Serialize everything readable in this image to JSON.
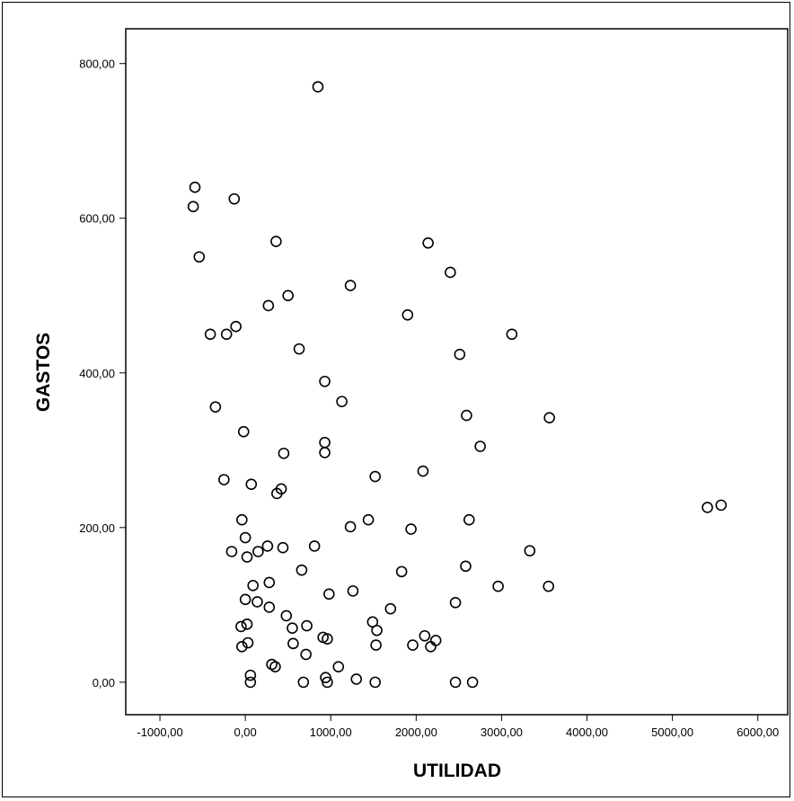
{
  "chart_data": {
    "type": "scatter",
    "title": "",
    "xlabel": "UTILIDAD",
    "ylabel": "GASTOS",
    "xlim": [
      -1400,
      6350
    ],
    "ylim": [
      -42,
      845
    ],
    "x_ticks": [
      -1000,
      0,
      1000,
      2000,
      3000,
      4000,
      5000,
      6000
    ],
    "x_tick_labels": [
      "-1000,00",
      "0,00",
      "1000,00",
      "2000,00",
      "3000,00",
      "4000,00",
      "5000,00",
      "6000,00"
    ],
    "y_ticks": [
      0,
      200,
      400,
      600,
      800
    ],
    "y_tick_labels": [
      "0,00",
      "200,00",
      "400,00",
      "600,00",
      "800,00"
    ],
    "grid": false,
    "legend": "none",
    "marker": "open-circle",
    "colors": {
      "marker": "#000000",
      "axis": "#000000",
      "background": "#ffffff"
    },
    "points": [
      {
        "x": 850,
        "y": 770
      },
      {
        "x": -590,
        "y": 640
      },
      {
        "x": -610,
        "y": 615
      },
      {
        "x": -130,
        "y": 625
      },
      {
        "x": 360,
        "y": 570
      },
      {
        "x": 2140,
        "y": 568
      },
      {
        "x": -540,
        "y": 550
      },
      {
        "x": 2400,
        "y": 530
      },
      {
        "x": 1230,
        "y": 513
      },
      {
        "x": 500,
        "y": 500
      },
      {
        "x": 270,
        "y": 487
      },
      {
        "x": 1900,
        "y": 475
      },
      {
        "x": -110,
        "y": 460
      },
      {
        "x": -410,
        "y": 450
      },
      {
        "x": -220,
        "y": 450
      },
      {
        "x": 3120,
        "y": 450
      },
      {
        "x": 630,
        "y": 431
      },
      {
        "x": 2510,
        "y": 424
      },
      {
        "x": 930,
        "y": 389
      },
      {
        "x": 1130,
        "y": 363
      },
      {
        "x": -350,
        "y": 356
      },
      {
        "x": 2590,
        "y": 345
      },
      {
        "x": 3560,
        "y": 342
      },
      {
        "x": -20,
        "y": 324
      },
      {
        "x": 930,
        "y": 310
      },
      {
        "x": 2750,
        "y": 305
      },
      {
        "x": 930,
        "y": 297
      },
      {
        "x": 450,
        "y": 296
      },
      {
        "x": 2080,
        "y": 273
      },
      {
        "x": 1520,
        "y": 266
      },
      {
        "x": -250,
        "y": 262
      },
      {
        "x": 70,
        "y": 256
      },
      {
        "x": 420,
        "y": 250
      },
      {
        "x": 370,
        "y": 244
      },
      {
        "x": 5410,
        "y": 226
      },
      {
        "x": 5570,
        "y": 229
      },
      {
        "x": -40,
        "y": 210
      },
      {
        "x": 1440,
        "y": 210
      },
      {
        "x": 2620,
        "y": 210
      },
      {
        "x": 1230,
        "y": 201
      },
      {
        "x": 1940,
        "y": 198
      },
      {
        "x": 0,
        "y": 187
      },
      {
        "x": 260,
        "y": 176
      },
      {
        "x": 810,
        "y": 176
      },
      {
        "x": 440,
        "y": 174
      },
      {
        "x": -160,
        "y": 169
      },
      {
        "x": 150,
        "y": 169
      },
      {
        "x": 3330,
        "y": 170
      },
      {
        "x": 20,
        "y": 162
      },
      {
        "x": 2580,
        "y": 150
      },
      {
        "x": 660,
        "y": 145
      },
      {
        "x": 1830,
        "y": 143
      },
      {
        "x": 280,
        "y": 129
      },
      {
        "x": 90,
        "y": 125
      },
      {
        "x": 2960,
        "y": 124
      },
      {
        "x": 3550,
        "y": 124
      },
      {
        "x": 1260,
        "y": 118
      },
      {
        "x": 980,
        "y": 114
      },
      {
        "x": 0,
        "y": 107
      },
      {
        "x": 140,
        "y": 104
      },
      {
        "x": 2460,
        "y": 103
      },
      {
        "x": 280,
        "y": 97
      },
      {
        "x": 1700,
        "y": 95
      },
      {
        "x": 480,
        "y": 86
      },
      {
        "x": 1490,
        "y": 78
      },
      {
        "x": 20,
        "y": 75
      },
      {
        "x": -50,
        "y": 72
      },
      {
        "x": 720,
        "y": 73
      },
      {
        "x": 550,
        "y": 70
      },
      {
        "x": 1540,
        "y": 67
      },
      {
        "x": 2100,
        "y": 60
      },
      {
        "x": 910,
        "y": 58
      },
      {
        "x": 960,
        "y": 56
      },
      {
        "x": 2230,
        "y": 54
      },
      {
        "x": 30,
        "y": 51
      },
      {
        "x": 560,
        "y": 50
      },
      {
        "x": 1530,
        "y": 48
      },
      {
        "x": 1960,
        "y": 48
      },
      {
        "x": -40,
        "y": 46
      },
      {
        "x": 2170,
        "y": 46
      },
      {
        "x": 710,
        "y": 36
      },
      {
        "x": 310,
        "y": 23
      },
      {
        "x": 350,
        "y": 20
      },
      {
        "x": 1090,
        "y": 20
      },
      {
        "x": 60,
        "y": 9
      },
      {
        "x": 940,
        "y": 6
      },
      {
        "x": 1300,
        "y": 4
      },
      {
        "x": 60,
        "y": 0
      },
      {
        "x": 680,
        "y": 0
      },
      {
        "x": 960,
        "y": 0
      },
      {
        "x": 1520,
        "y": 0
      },
      {
        "x": 2460,
        "y": 0
      },
      {
        "x": 2660,
        "y": 0
      }
    ]
  }
}
